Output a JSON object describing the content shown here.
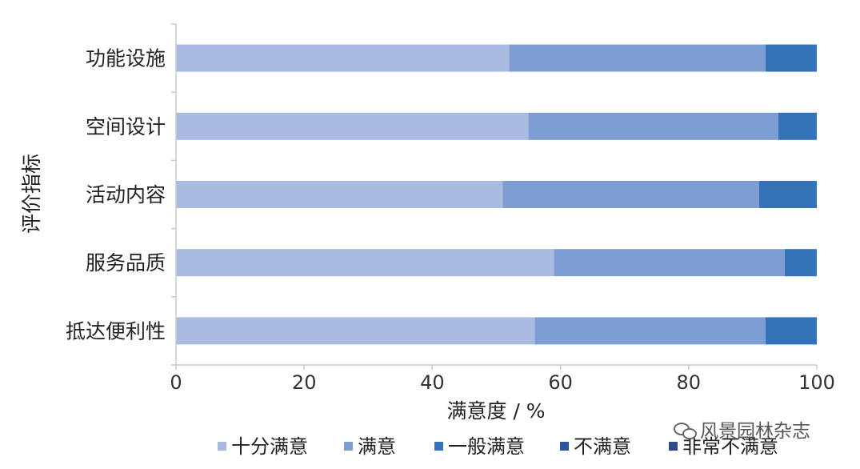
{
  "chart_data": {
    "type": "bar",
    "orientation": "horizontal",
    "stacked": true,
    "categories": [
      "功能设施",
      "空间设计",
      "活动内容",
      "服务品质",
      "抵达便利性"
    ],
    "series": [
      {
        "name": "十分满意",
        "color": "#a9bbe0",
        "values": [
          52,
          55,
          51,
          59,
          56
        ]
      },
      {
        "name": "满意",
        "color": "#7e9dd0",
        "values": [
          40,
          39,
          40,
          36,
          36
        ]
      },
      {
        "name": "一般满意",
        "color": "#3472b9",
        "values": [
          8,
          6,
          9,
          5,
          8
        ]
      },
      {
        "name": "不满意",
        "color": "#2d55a0",
        "values": [
          0,
          0,
          0,
          0,
          0
        ]
      },
      {
        "name": "非常不满意",
        "color": "#304a86",
        "values": [
          0,
          0,
          0,
          0,
          0
        ]
      }
    ],
    "xlabel": "满意度 / %",
    "ylabel": "评价指标",
    "xlim": [
      0,
      100
    ],
    "xticks": [
      0,
      20,
      40,
      60,
      80,
      100
    ],
    "grid": false,
    "legend_position": "bottom"
  },
  "watermark": {
    "text": "风景园林杂志"
  }
}
